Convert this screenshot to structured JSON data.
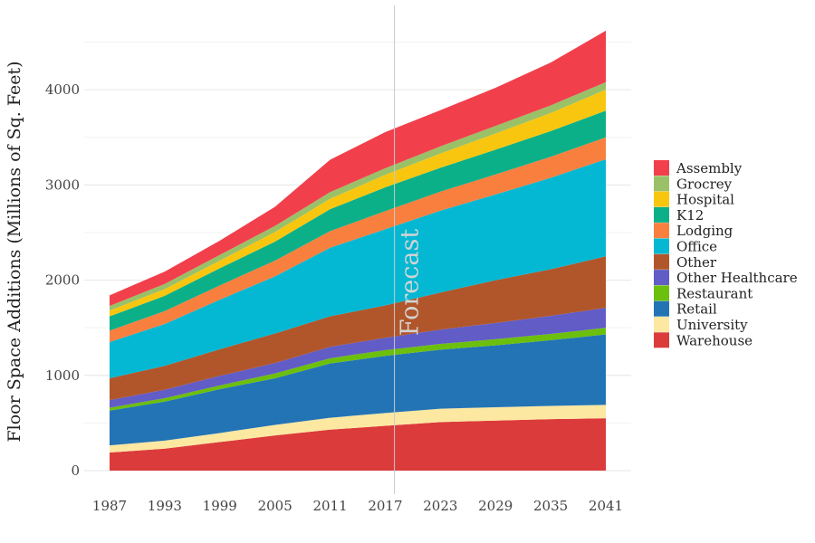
{
  "chart_data": {
    "type": "area",
    "stacked": true,
    "title": "",
    "xlabel": "",
    "ylabel": "Floor Space Additions (Millions of Sq. Feet)",
    "x": [
      1987,
      1993,
      1999,
      2005,
      2011,
      2017,
      2023,
      2029,
      2035,
      2041
    ],
    "xlim": [
      1987,
      2041
    ],
    "ylim": [
      0,
      4600
    ],
    "yticks": [
      0,
      1000,
      2000,
      3000,
      4000
    ],
    "xticks": [
      1987,
      1993,
      1999,
      2005,
      2011,
      2017,
      2023,
      2029,
      2035,
      2041
    ],
    "grid": true,
    "legend_position": "right",
    "annotation": {
      "text": "Forecast",
      "x": 2018
    },
    "series": [
      {
        "name": "Warehouse",
        "color": "#dc3b3b",
        "values": [
          190,
          230,
          300,
          370,
          430,
          470,
          510,
          525,
          540,
          550
        ]
      },
      {
        "name": "University",
        "color": "#fde8a2",
        "values": [
          75,
          85,
          95,
          110,
          125,
          135,
          140,
          140,
          140,
          140
        ]
      },
      {
        "name": "Retail",
        "color": "#2374b5",
        "values": [
          365,
          410,
          460,
          490,
          570,
          600,
          620,
          650,
          690,
          740
        ]
      },
      {
        "name": "Restaurant",
        "color": "#6cbf0c",
        "values": [
          30,
          35,
          40,
          50,
          55,
          60,
          60,
          65,
          65,
          70
        ]
      },
      {
        "name": "Other Healthcare",
        "color": "#615cc6",
        "values": [
          80,
          90,
          100,
          110,
          120,
          130,
          150,
          170,
          190,
          210
        ]
      },
      {
        "name": "Other",
        "color": "#b1562a",
        "values": [
          230,
          250,
          280,
          310,
          320,
          340,
          390,
          450,
          490,
          540
        ]
      },
      {
        "name": "Office",
        "color": "#04b8d3",
        "values": [
          380,
          440,
          520,
          600,
          720,
          800,
          860,
          900,
          960,
          1020
        ]
      },
      {
        "name": "Lodging",
        "color": "#f97f3f",
        "values": [
          120,
          135,
          150,
          165,
          175,
          190,
          200,
          210,
          220,
          230
        ]
      },
      {
        "name": "K12",
        "color": "#0bb089",
        "values": [
          150,
          160,
          180,
          200,
          230,
          250,
          250,
          260,
          270,
          280
        ]
      },
      {
        "name": "Hospital",
        "color": "#f9c60f",
        "values": [
          60,
          70,
          80,
          100,
          110,
          130,
          150,
          170,
          190,
          220
        ]
      },
      {
        "name": "Grocrey",
        "color": "#9ac168",
        "values": [
          50,
          55,
          60,
          65,
          70,
          70,
          75,
          80,
          80,
          80
        ]
      },
      {
        "name": "Assembly",
        "color": "#f23f4c",
        "values": [
          110,
          130,
          150,
          200,
          340,
          380,
          380,
          400,
          450,
          540
        ]
      }
    ],
    "legend_order": [
      "Assembly",
      "Grocrey",
      "Hospital",
      "K12",
      "Lodging",
      "Office",
      "Other",
      "Other Healthcare",
      "Restaurant",
      "Retail",
      "University",
      "Warehouse"
    ]
  }
}
